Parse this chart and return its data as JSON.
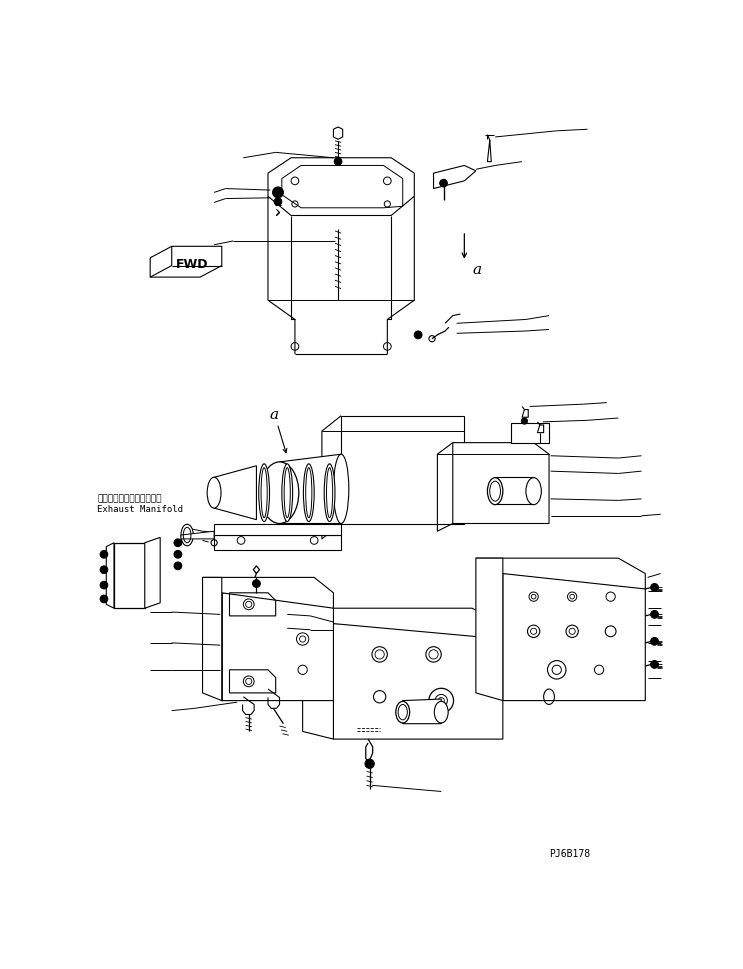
{
  "bg_color": "#ffffff",
  "line_color": "#000000",
  "fig_width": 7.43,
  "fig_height": 9.7,
  "dpi": 100,
  "part_id": "PJ6B178",
  "label_fwd": "FWD",
  "label_a1": "a",
  "label_a2": "a",
  "label_exhaust_jp": "エキゾーストマニホールド",
  "label_exhaust_en": "Exhaust Manifold"
}
